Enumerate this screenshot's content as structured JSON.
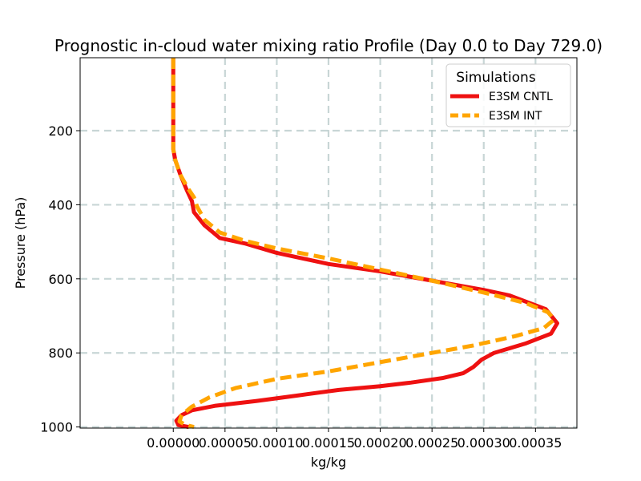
{
  "chart_data": {
    "type": "line",
    "title": "Prognostic in-cloud water mixing ratio Profile (Day 0.0 to Day 729.0)",
    "xlabel": "kg/kg",
    "ylabel": "Pressure (hPa)",
    "xlim": [
      -9e-05,
      0.00039
    ],
    "ylim": [
      1003,
      3
    ],
    "y_inverted": true,
    "grid": true,
    "x_ticks": [
      0.0,
      5e-05,
      0.0001,
      0.00015,
      0.0002,
      0.00025,
      0.0003,
      0.00035
    ],
    "x_tick_labels": [
      "0.00000",
      "0.00005",
      "0.00010",
      "0.00015",
      "0.00020",
      "0.00025",
      "0.00030",
      "0.00035"
    ],
    "y_ticks": [
      200,
      400,
      600,
      800,
      1000
    ],
    "y_tick_labels": [
      "200",
      "400",
      "600",
      "800",
      "1000"
    ],
    "legend": {
      "title": "Simulations",
      "position": "upper right"
    },
    "series": [
      {
        "name": "E3SM CNTL",
        "color": "#ee1111",
        "style": "solid",
        "points": [
          [
            0.0,
            3
          ],
          [
            0.0,
            100
          ],
          [
            0.0,
            200
          ],
          [
            0.0,
            250
          ],
          [
            2e-06,
            280
          ],
          [
            7e-06,
            320
          ],
          [
            1.3e-05,
            360
          ],
          [
            1.8e-05,
            390
          ],
          [
            2e-05,
            420
          ],
          [
            3e-05,
            455
          ],
          [
            4.5e-05,
            490
          ],
          [
            7e-05,
            505
          ],
          [
            0.0001,
            530
          ],
          [
            0.00015,
            560
          ],
          [
            0.0002,
            580
          ],
          [
            0.00025,
            605
          ],
          [
            0.0003,
            630
          ],
          [
            0.000325,
            645
          ],
          [
            0.00036,
            682
          ],
          [
            0.000371,
            720
          ],
          [
            0.000365,
            748
          ],
          [
            0.00034,
            775
          ],
          [
            0.00031,
            800
          ],
          [
            0.000298,
            818
          ],
          [
            0.00029,
            838
          ],
          [
            0.00028,
            855
          ],
          [
            0.00026,
            868
          ],
          [
            0.00023,
            880
          ],
          [
            0.0002,
            890
          ],
          [
            0.00016,
            900
          ],
          [
            0.00012,
            915
          ],
          [
            8e-05,
            930
          ],
          [
            4e-05,
            943
          ],
          [
            1.8e-05,
            955
          ],
          [
            8e-06,
            968
          ],
          [
            3e-06,
            983
          ],
          [
            5e-06,
            995
          ],
          [
            1.5e-05,
            1000
          ]
        ]
      },
      {
        "name": "E3SM INT",
        "color": "#ffa500",
        "style": "dashed",
        "points": [
          [
            0.0,
            3
          ],
          [
            0.0,
            100
          ],
          [
            0.0,
            200
          ],
          [
            0.0,
            250
          ],
          [
            2e-06,
            280
          ],
          [
            7e-06,
            320
          ],
          [
            1.4e-05,
            355
          ],
          [
            2e-05,
            380
          ],
          [
            2.3e-05,
            405
          ],
          [
            3e-05,
            440
          ],
          [
            4.5e-05,
            475
          ],
          [
            7e-05,
            498
          ],
          [
            0.0001,
            518
          ],
          [
            0.00015,
            545
          ],
          [
            0.0002,
            575
          ],
          [
            0.00025,
            605
          ],
          [
            0.0003,
            637
          ],
          [
            0.00034,
            665
          ],
          [
            0.000362,
            690
          ],
          [
            0.000368,
            710
          ],
          [
            0.000358,
            733
          ],
          [
            0.00033,
            755
          ],
          [
            0.00029,
            780
          ],
          [
            0.00025,
            800
          ],
          [
            0.0002,
            825
          ],
          [
            0.00015,
            850
          ],
          [
            0.0001,
            870
          ],
          [
            6e-05,
            895
          ],
          [
            3.5e-05,
            920
          ],
          [
            1.8e-05,
            945
          ],
          [
            8e-06,
            968
          ],
          [
            6e-06,
            985
          ],
          [
            1.2e-05,
            995
          ],
          [
            2e-05,
            1000
          ]
        ]
      }
    ]
  }
}
